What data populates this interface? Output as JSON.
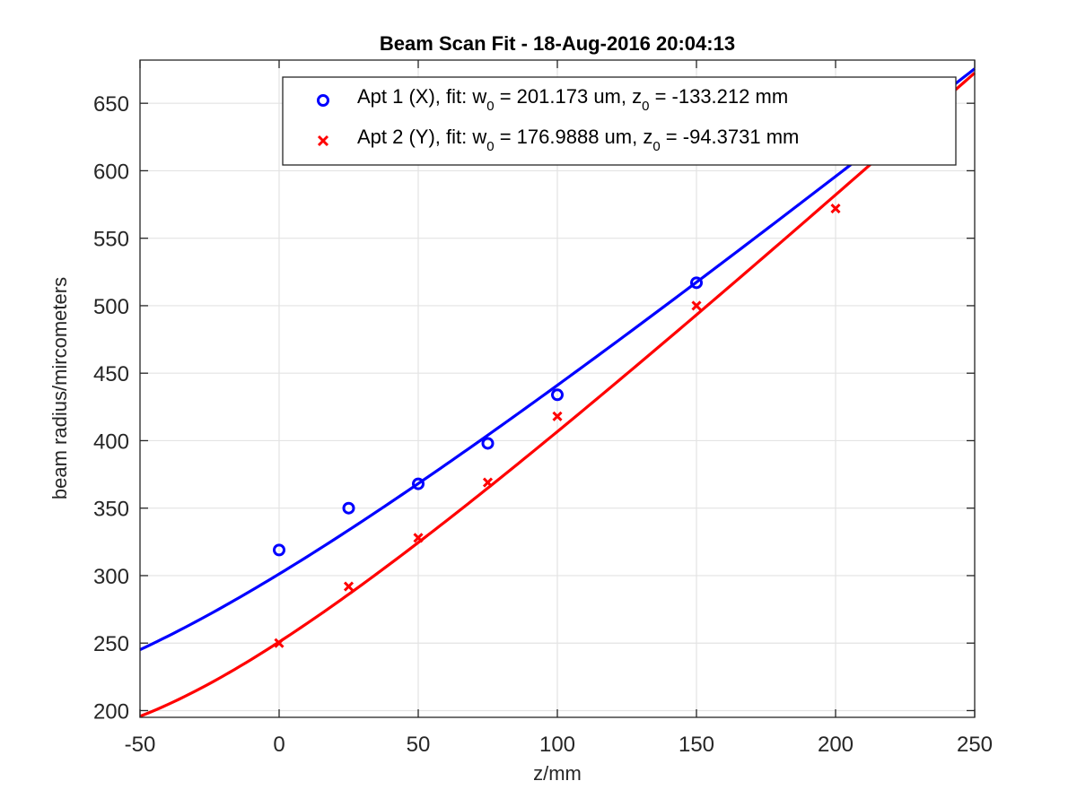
{
  "chart_data": {
    "type": "scatter",
    "title": "Beam Scan Fit - 18-Aug-2016 20:04:13",
    "xlabel": "z/mm",
    "ylabel": "beam radius/mircometers",
    "xlim": [
      -50,
      250
    ],
    "ylim": [
      195,
      682
    ],
    "xticks": [
      -50,
      0,
      50,
      100,
      150,
      200,
      250
    ],
    "yticks": [
      200,
      250,
      300,
      350,
      400,
      450,
      500,
      550,
      600,
      650
    ],
    "grid": true,
    "legend_position": "top-right",
    "series": [
      {
        "name": "Apt 1 (X), fit: w0 = 201.173 um, z0 = -133.212 mm",
        "legend_parts": {
          "a": "Apt 1 (X), fit: w",
          "b": "0",
          "c": " = 201.173 um, z",
          "d": "0",
          "e": " = -133.212 mm"
        },
        "color": "#0000ff",
        "marker": "circle",
        "x": [
          0,
          25,
          50,
          75,
          100,
          150
        ],
        "y": [
          319,
          350,
          368,
          398,
          434,
          517
        ],
        "fit": {
          "w0": 201.173,
          "z0": -133.212
        }
      },
      {
        "name": "Apt 2 (Y), fit: w0 = 176.9888 um, z0 = -94.3731 mm",
        "legend_parts": {
          "a": "Apt 2 (Y), fit: w",
          "b": "0",
          "c": " = 176.9888 um, z",
          "d": "0",
          "e": " = -94.3731 mm"
        },
        "color": "#ff0000",
        "marker": "x",
        "x": [
          0,
          25,
          50,
          75,
          100,
          150,
          200
        ],
        "y": [
          250,
          292,
          328,
          369,
          418,
          500,
          572
        ],
        "fit": {
          "w0": 176.9888,
          "z0": -94.3731
        }
      }
    ]
  }
}
